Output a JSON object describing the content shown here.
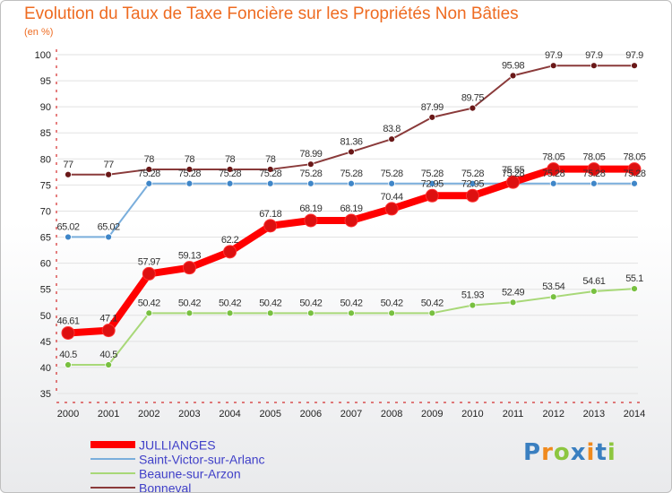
{
  "title": "Evolution du Taux de Taxe Foncière sur les Propriétés Non Bâties",
  "unit_label": "(en %)",
  "logo_text": "Proxiti",
  "colors": {
    "title": "#ee6b21",
    "axis": "#cc0000",
    "grid": "#e2e2e2",
    "legend_text": "#4040c8",
    "logo": [
      "#3a7fc0",
      "#f08a1d",
      "#8dc63f",
      "#3a7fc0",
      "#f08a1d",
      "#3a7fc0",
      "#8dc63f"
    ]
  },
  "chart_data": {
    "type": "line",
    "x": [
      2000,
      2001,
      2002,
      2003,
      2004,
      2005,
      2006,
      2007,
      2008,
      2009,
      2010,
      2011,
      2012,
      2013,
      2014
    ],
    "ylim": [
      35,
      100
    ],
    "yticks": [
      35,
      40,
      45,
      50,
      55,
      60,
      65,
      70,
      75,
      80,
      85,
      90,
      95,
      100
    ],
    "grid": "horizontal",
    "legend_position": "bottom-left",
    "series": [
      {
        "name": "JULLIANGES",
        "color": "#ff0000",
        "dot_color": "#dd1010",
        "width": 8,
        "dot_radius": 7,
        "values": [
          46.61,
          47.1,
          57.97,
          59.13,
          62.2,
          67.18,
          68.19,
          68.19,
          70.44,
          72.95,
          72.95,
          75.55,
          78.05,
          78.05,
          78.05
        ],
        "labels": [
          "46.61",
          "47.1",
          "57.97",
          "59.13",
          "62.2",
          "67.18",
          "68.19",
          "68.19",
          "70.44",
          "72.95",
          "72.95",
          "75.55",
          "78.05",
          "78.05",
          "78.05"
        ]
      },
      {
        "name": "Saint-Victor-sur-Arlanc",
        "color": "#7aaedc",
        "dot_color": "#3f86c8",
        "width": 2,
        "dot_radius": 3.5,
        "values": [
          65.02,
          65.02,
          75.28,
          75.28,
          75.28,
          75.28,
          75.28,
          75.28,
          75.28,
          75.28,
          75.28,
          75.28,
          75.28,
          75.28,
          75.28
        ],
        "labels": [
          "65.02",
          "65.02",
          "75.28",
          "75.28",
          "75.28",
          "75.28",
          "75.28",
          "75.28",
          "75.28",
          "75.28",
          "75.28",
          "75.28",
          "75.28",
          "75.28",
          "75.28"
        ]
      },
      {
        "name": "Beaune-sur-Arzon",
        "color": "#a8d878",
        "dot_color": "#78c040",
        "width": 2,
        "dot_radius": 3.5,
        "values": [
          40.5,
          40.5,
          50.42,
          50.42,
          50.42,
          50.42,
          50.42,
          50.42,
          50.42,
          50.42,
          51.93,
          52.49,
          53.54,
          54.61,
          55.1
        ],
        "labels": [
          "40.5",
          "40.5",
          "50.42",
          "50.42",
          "50.42",
          "50.42",
          "50.42",
          "50.42",
          "50.42",
          "50.42",
          "51.93",
          "52.49",
          "53.54",
          "54.61",
          "55.1"
        ]
      },
      {
        "name": "Bonneval",
        "color": "#8a3a3a",
        "dot_color": "#6a1818",
        "width": 2,
        "dot_radius": 3.5,
        "values": [
          77,
          77,
          78,
          78,
          78,
          78,
          78.99,
          81.36,
          83.8,
          87.99,
          89.75,
          95.98,
          97.9,
          97.9,
          97.9
        ],
        "labels": [
          "77",
          "77",
          "78",
          "78",
          "78",
          "78",
          "78.99",
          "81.36",
          "83.8",
          "87.99",
          "89.75",
          "95.98",
          "97.9",
          "97.9",
          "97.9"
        ]
      }
    ]
  }
}
